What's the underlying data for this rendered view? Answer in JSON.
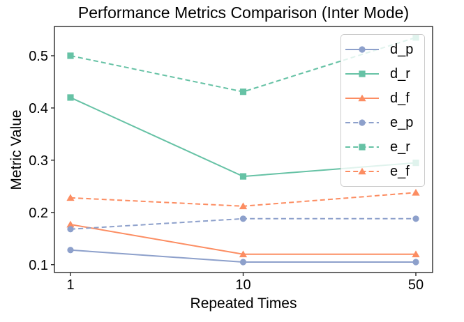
{
  "figure": {
    "background": "#ffffff"
  },
  "chart_data": {
    "type": "line",
    "title": "Performance Metrics Comparison (Inter Mode)",
    "xlabel": "Repeated Times",
    "ylabel": "Metric Value",
    "categories": [
      "1",
      "10",
      "50"
    ],
    "x_values": [
      1,
      10,
      50
    ],
    "yticks": [
      "0.1",
      "0.2",
      "0.3",
      "0.4",
      "0.5"
    ],
    "ylim": [
      0.085,
      0.556
    ],
    "grid": false,
    "legend_position": "upper right",
    "series": [
      {
        "name": "d_p",
        "values": [
          0.128,
          0.105,
          0.105
        ],
        "color": "#8da0cb",
        "line_style": "solid",
        "marker": "circle"
      },
      {
        "name": "d_r",
        "values": [
          0.42,
          0.269,
          0.295
        ],
        "color": "#66c2a5",
        "line_style": "solid",
        "marker": "square"
      },
      {
        "name": "d_f",
        "values": [
          0.177,
          0.12,
          0.12
        ],
        "color": "#fc8d62",
        "line_style": "solid",
        "marker": "triangle"
      },
      {
        "name": "e_p",
        "values": [
          0.168,
          0.188,
          0.188
        ],
        "color": "#8da0cb",
        "line_style": "dashed",
        "marker": "circle"
      },
      {
        "name": "e_r",
        "values": [
          0.5,
          0.431,
          0.535
        ],
        "color": "#66c2a5",
        "line_style": "dashed",
        "marker": "square"
      },
      {
        "name": "e_f",
        "values": [
          0.228,
          0.212,
          0.238
        ],
        "color": "#fc8d62",
        "line_style": "dashed",
        "marker": "triangle"
      }
    ]
  }
}
